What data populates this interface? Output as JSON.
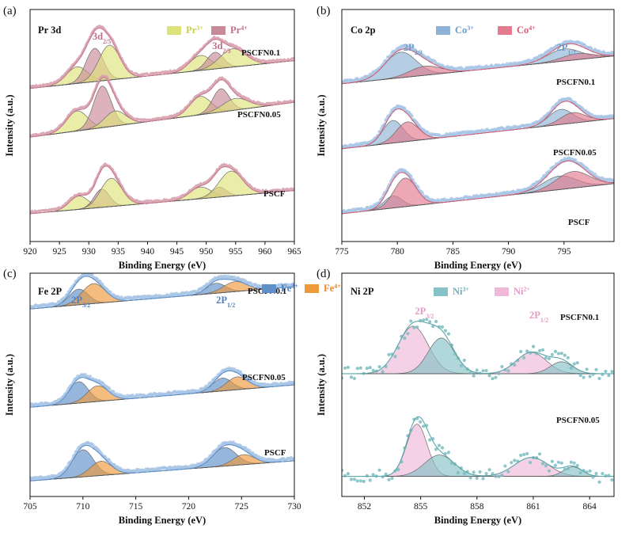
{
  "chart_data": [
    {
      "type": "line",
      "panel_label": "(a)",
      "title": "Pr 3d",
      "xlabel": "Binding Energy (eV)",
      "ylabel": "Intensity (a.u.)",
      "xlim": [
        920,
        965
      ],
      "xticks": [
        920,
        925,
        930,
        935,
        940,
        945,
        950,
        955,
        960,
        965
      ],
      "legend": [
        {
          "label": "Pr",
          "sup": "3+",
          "color": "#dde37a",
          "text_color": "#c9cf4a"
        },
        {
          "label": "Pr",
          "sup": "4+",
          "color": "#c98a98",
          "text_color": "#c06f86"
        }
      ],
      "peak_labels": [
        {
          "base": "3d",
          "sub": "2/5",
          "x": 932.2
        },
        {
          "base": "3d",
          "sub": "2/3",
          "x": 952.6
        }
      ],
      "series": [
        {
          "name": "PSCFN0.1",
          "peaks": [
            {
              "center": 928,
              "height": 0.5,
              "width": 1.8,
              "type": "3+"
            },
            {
              "center": 931,
              "height": 1.0,
              "width": 1.5,
              "type": "4+"
            },
            {
              "center": 933.5,
              "height": 1.05,
              "width": 1.8,
              "type": "3+"
            },
            {
              "center": 949,
              "height": 0.45,
              "width": 1.8,
              "type": "3+"
            },
            {
              "center": 951.5,
              "height": 0.5,
              "width": 1.4,
              "type": "4+"
            },
            {
              "center": 954.5,
              "height": 0.55,
              "width": 2.2,
              "type": "3+"
            }
          ]
        },
        {
          "name": "PSCFN0.05",
          "peaks": [
            {
              "center": 928,
              "height": 0.6,
              "width": 1.8,
              "type": "3+"
            },
            {
              "center": 932.3,
              "height": 1.25,
              "width": 1.5,
              "type": "4+"
            },
            {
              "center": 934.5,
              "height": 0.45,
              "width": 1.8,
              "type": "3+"
            },
            {
              "center": 949,
              "height": 0.55,
              "width": 1.8,
              "type": "3+"
            },
            {
              "center": 952.5,
              "height": 0.7,
              "width": 1.4,
              "type": "4+"
            },
            {
              "center": 955,
              "height": 0.35,
              "width": 2.2,
              "type": "3+"
            }
          ]
        },
        {
          "name": "PSCF",
          "peaks": [
            {
              "center": 928.3,
              "height": 0.4,
              "width": 1.6,
              "type": "3+"
            },
            {
              "center": 932.2,
              "height": 0.55,
              "width": 1.3,
              "type": "4+"
            },
            {
              "center": 933.8,
              "height": 0.85,
              "width": 1.8,
              "type": "3+"
            },
            {
              "center": 949,
              "height": 0.35,
              "width": 1.8,
              "type": "3+"
            },
            {
              "center": 952.2,
              "height": 0.3,
              "width": 1.2,
              "type": "4+"
            },
            {
              "center": 954.2,
              "height": 0.75,
              "width": 2.0,
              "type": "3+"
            }
          ]
        }
      ]
    },
    {
      "type": "line",
      "panel_label": "(b)",
      "title": "Co 2p",
      "xlabel": "Binding Energy (eV)",
      "ylabel": "Intensity (a.u.)",
      "xlim": [
        775,
        799.5
      ],
      "xticks": [
        775,
        780,
        785,
        790,
        795
      ],
      "legend": [
        {
          "label": "Co",
          "sup": "3+",
          "color": "#8fb3d6",
          "text_color": "#6f9cc9"
        },
        {
          "label": "Co",
          "sup": "4+",
          "color": "#e47a8e",
          "text_color": "#d85c76"
        }
      ],
      "peak_labels": [
        {
          "base": "2P",
          "sub": "2/3",
          "x": 781.4
        },
        {
          "base": "2P",
          "sub": "1/2",
          "x": 795.2
        }
      ],
      "series": [
        {
          "name": "PSCFN0.1",
          "peaks": [
            {
              "center": 780.3,
              "height": 0.85,
              "width": 1.4,
              "type": "3+"
            },
            {
              "center": 782.5,
              "height": 0.3,
              "width": 1.4,
              "type": "4+"
            },
            {
              "center": 795,
              "height": 0.4,
              "width": 1.5,
              "type": "3+"
            },
            {
              "center": 796.2,
              "height": 0.2,
              "width": 1.4,
              "type": "4+"
            }
          ]
        },
        {
          "name": "PSCFN0.05",
          "peaks": [
            {
              "center": 779.6,
              "height": 0.75,
              "width": 0.9,
              "type": "3+"
            },
            {
              "center": 780.9,
              "height": 0.65,
              "width": 1.0,
              "type": "4+"
            },
            {
              "center": 794.7,
              "height": 0.5,
              "width": 1.1,
              "type": "3+"
            },
            {
              "center": 795.8,
              "height": 0.35,
              "width": 1.1,
              "type": "4+"
            }
          ]
        },
        {
          "name": "PSCF",
          "peaks": [
            {
              "center": 779.6,
              "height": 0.4,
              "width": 0.8,
              "type": "3+"
            },
            {
              "center": 780.7,
              "height": 0.95,
              "width": 1.0,
              "type": "4+"
            },
            {
              "center": 794.6,
              "height": 0.45,
              "width": 1.5,
              "type": "3+"
            },
            {
              "center": 795.8,
              "height": 0.55,
              "width": 1.5,
              "type": "4+"
            }
          ]
        }
      ]
    },
    {
      "type": "line",
      "panel_label": "(c)",
      "title": "Fe 2P",
      "xlabel": "Binding Energy (eV)",
      "ylabel": "Intensity (a.u.)",
      "xlim": [
        705,
        730
      ],
      "xticks": [
        705,
        710,
        715,
        720,
        725,
        730
      ],
      "legend": [
        {
          "label": "Fe",
          "sup": "3+",
          "color": "#5f8fc9",
          "text_color": "#4f7fc0"
        },
        {
          "label": "Fe",
          "sup": "4+",
          "color": "#ee9a3a",
          "text_color": "#e8892a"
        }
      ],
      "peak_labels": [
        {
          "base": "2P",
          "sub": "3/2",
          "x": 709.8
        },
        {
          "base": "2P",
          "sub": "1/2",
          "x": 723.5
        }
      ],
      "series": [
        {
          "name": "PSCFN0.1",
          "peaks": [
            {
              "center": 709.6,
              "height": 0.55,
              "width": 0.9,
              "type": "3+"
            },
            {
              "center": 711,
              "height": 0.7,
              "width": 1.1,
              "type": "4+"
            },
            {
              "center": 722.6,
              "height": 0.35,
              "width": 0.9,
              "type": "3+"
            },
            {
              "center": 724.4,
              "height": 0.35,
              "width": 1.1,
              "type": "4+"
            }
          ]
        },
        {
          "name": "PSCFN0.05",
          "peaks": [
            {
              "center": 709.6,
              "height": 0.75,
              "width": 0.9,
              "type": "3+"
            },
            {
              "center": 711.4,
              "height": 0.55,
              "width": 1.0,
              "type": "4+"
            },
            {
              "center": 723.2,
              "height": 0.45,
              "width": 0.9,
              "type": "3+"
            },
            {
              "center": 724.6,
              "height": 0.45,
              "width": 1.0,
              "type": "4+"
            }
          ]
        },
        {
          "name": "PSCF",
          "peaks": [
            {
              "center": 710,
              "height": 0.95,
              "width": 1.0,
              "type": "3+"
            },
            {
              "center": 711.7,
              "height": 0.5,
              "width": 1.0,
              "type": "4+"
            },
            {
              "center": 723.4,
              "height": 0.65,
              "width": 1.1,
              "type": "3+"
            },
            {
              "center": 725.2,
              "height": 0.35,
              "width": 1.0,
              "type": "4+"
            }
          ]
        }
      ]
    },
    {
      "type": "line",
      "panel_label": "(d)",
      "title": "Ni 2P",
      "xlabel": "Binding Energy (eV)",
      "ylabel": "Intensity (a.u.)",
      "xlim": [
        850.8,
        865.3
      ],
      "xticks": [
        852,
        855,
        858,
        861,
        864
      ],
      "legend": [
        {
          "label": "Ni",
          "sup": "3+",
          "color": "#86c2c6",
          "text_color": "#6fb3b8"
        },
        {
          "label": "Ni",
          "sup": "2+",
          "color": "#eeb9d9",
          "text_color": "#e49bc7"
        }
      ],
      "peak_labels": [
        {
          "base": "2P",
          "sub": "3/2",
          "x": 855.2
        },
        {
          "base": "2P",
          "sub": "1/2",
          "x": 861.3
        }
      ],
      "series": [
        {
          "name": "PSCFN0.1",
          "peaks": [
            {
              "center": 854.6,
              "height": 1.0,
              "width": 0.8,
              "type": "2+"
            },
            {
              "center": 856.1,
              "height": 0.75,
              "width": 0.7,
              "type": "3+"
            },
            {
              "center": 860.9,
              "height": 0.45,
              "width": 0.8,
              "type": "2+"
            },
            {
              "center": 862.5,
              "height": 0.25,
              "width": 0.6,
              "type": "3+"
            }
          ]
        },
        {
          "name": "PSCFN0.05",
          "peaks": [
            {
              "center": 854.8,
              "height": 1.1,
              "width": 0.55,
              "type": "2+"
            },
            {
              "center": 856,
              "height": 0.45,
              "width": 0.8,
              "type": "3+"
            },
            {
              "center": 860.9,
              "height": 0.4,
              "width": 0.9,
              "type": "2+"
            },
            {
              "center": 863.1,
              "height": 0.2,
              "width": 0.5,
              "type": "3+"
            }
          ]
        }
      ]
    }
  ]
}
